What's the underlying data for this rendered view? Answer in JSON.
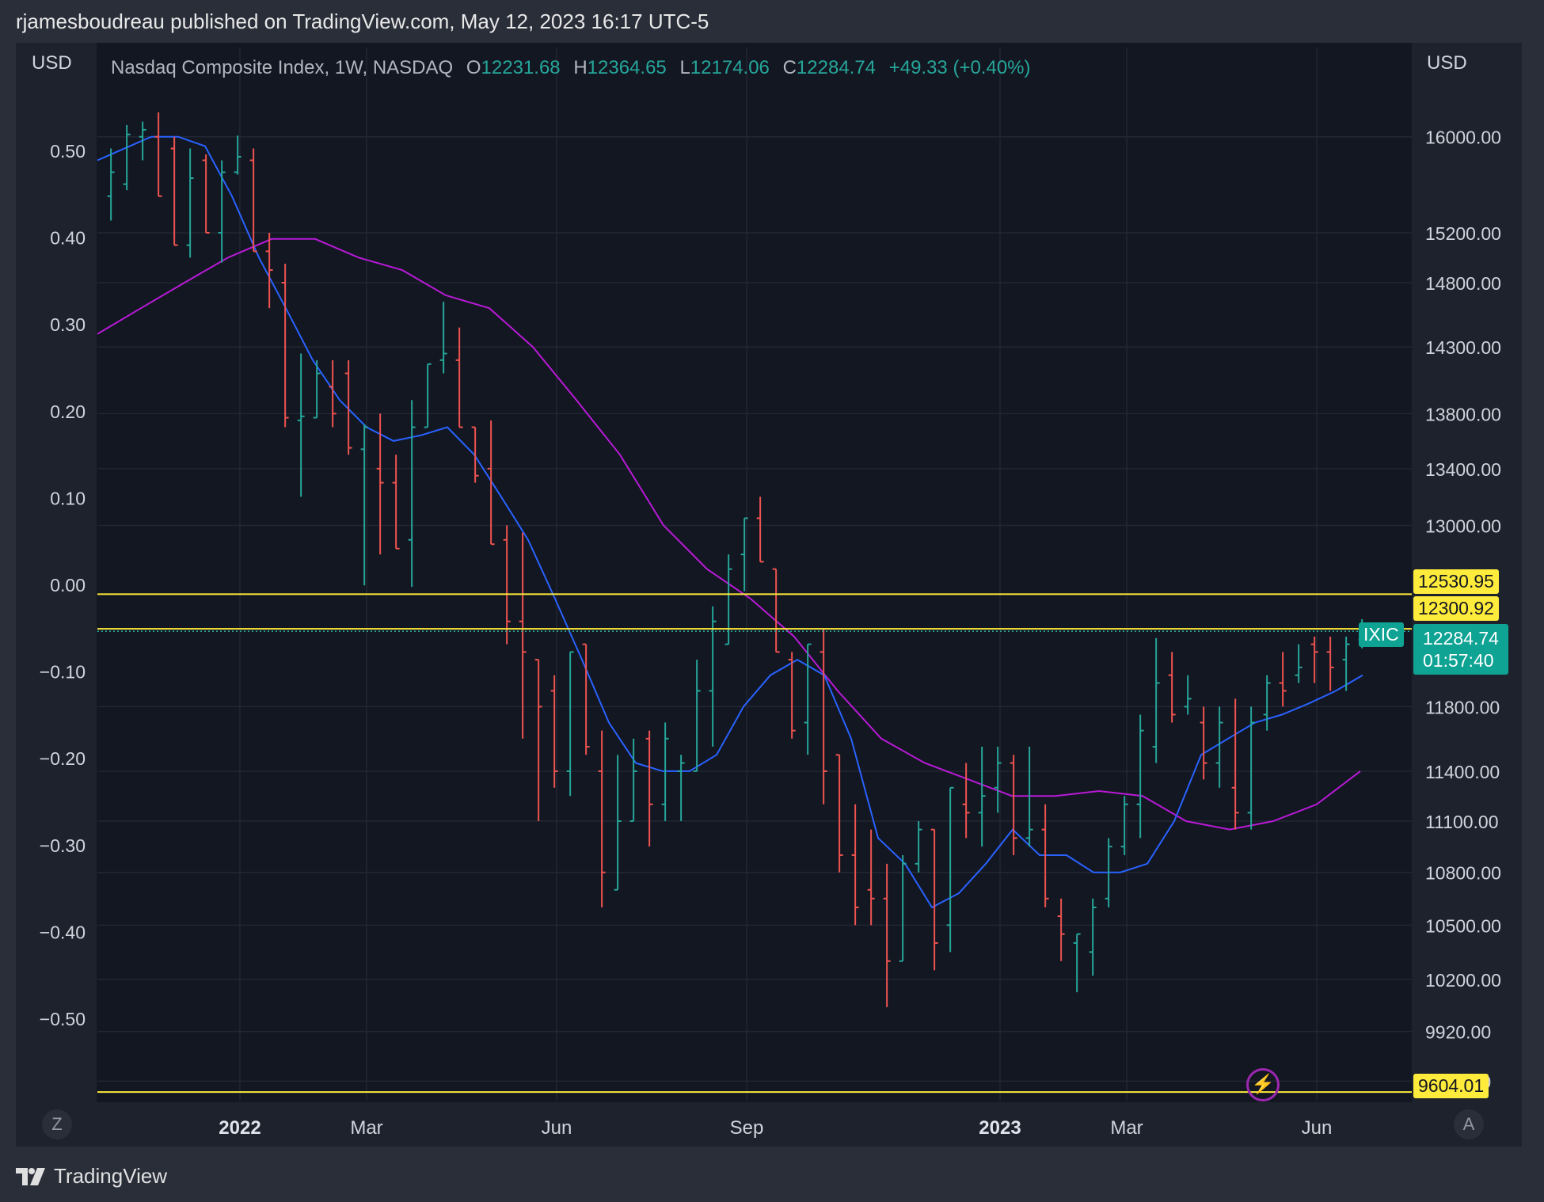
{
  "header": {
    "publisher_line": "rjamesboudreau published on TradingView.com, May 12, 2023 16:17 UTC-5"
  },
  "legend": {
    "symbol": "Nasdaq Composite Index, 1W, NASDAQ",
    "o_label": "O",
    "o_value": "12231.68",
    "h_label": "H",
    "h_value": "12364.65",
    "l_label": "L",
    "l_value": "12174.06",
    "c_label": "C",
    "c_value": "12284.74",
    "change": "+49.33 (+0.40%)"
  },
  "axes": {
    "left_unit": "USD",
    "right_unit": "USD"
  },
  "price_tags": {
    "line1": "12530.95",
    "line2": "12300.92",
    "symbol": "IXIC",
    "last_price": "12284.74",
    "countdown": "01:57:40",
    "low_line": "9604.01"
  },
  "buttons": {
    "left": "Z",
    "right": "A"
  },
  "footer": {
    "brand": "TradingView"
  },
  "colors": {
    "up": "#26a69a",
    "down": "#ef5350",
    "ma_fast": "#2962ff",
    "ma_slow": "#b81ad6",
    "hline": "#ffeb3b",
    "grid": "#232733"
  },
  "chart_data": {
    "type": "ohlc",
    "title": "Nasdaq Composite Index, 1W, NASDAQ",
    "y_scale": "log",
    "ylim": [
      9560,
      16500
    ],
    "x_range_weeks": [
      -9,
      74
    ],
    "left_axis_ticks": [
      "0.50",
      "0.40",
      "0.30",
      "0.20",
      "0.10",
      "0.00",
      "−0.10",
      "−0.20",
      "−0.30",
      "−0.40",
      "−0.50"
    ],
    "right_axis_ticks": [
      "16000.00",
      "15200.00",
      "14800.00",
      "14300.00",
      "13800.00",
      "13400.00",
      "13000.00",
      "11800.00",
      "11400.00",
      "11100.00",
      "10800.00",
      "10500.00",
      "10200.00",
      "9920.00",
      "9660.00"
    ],
    "x_ticks": [
      {
        "label": "2022",
        "week": 0,
        "bold": true
      },
      {
        "label": "Mar",
        "week": 8,
        "bold": false
      },
      {
        "label": "Jun",
        "week": 20,
        "bold": false
      },
      {
        "label": "Sep",
        "week": 32,
        "bold": false
      },
      {
        "label": "2023",
        "week": 48,
        "bold": true
      },
      {
        "label": "Mar",
        "week": 56,
        "bold": false
      },
      {
        "label": "Jun",
        "week": 68,
        "bold": false
      }
    ],
    "horizontal_lines": [
      12530.95,
      12300.92,
      9604.01
    ],
    "last_price": 12284.74,
    "bars": [
      {
        "t": "2021-11-05",
        "o": 15500,
        "h": 15900,
        "l": 15300,
        "c": 15700
      },
      {
        "t": "2021-11-12",
        "o": 15600,
        "h": 16100,
        "l": 15550,
        "c": 16020
      },
      {
        "t": "2021-11-19",
        "o": 16000,
        "h": 16130,
        "l": 15800,
        "c": 16060
      },
      {
        "t": "2021-11-26",
        "o": 16000,
        "h": 16210,
        "l": 15690,
        "c": 15500
      },
      {
        "t": "2021-12-03",
        "o": 15900,
        "h": 16000,
        "l": 15100,
        "c": 15100
      },
      {
        "t": "2021-12-10",
        "o": 15100,
        "h": 15900,
        "l": 15000,
        "c": 15650
      },
      {
        "t": "2021-12-17",
        "o": 15800,
        "h": 15850,
        "l": 15200,
        "c": 15200
      },
      {
        "t": "2021-12-24",
        "o": 15200,
        "h": 15800,
        "l": 14960,
        "c": 15700
      },
      {
        "t": "2021-12-31",
        "o": 15700,
        "h": 16010,
        "l": 15680,
        "c": 15830
      },
      {
        "t": "2022-01-07",
        "o": 15800,
        "h": 15900,
        "l": 15100,
        "c": 15050
      },
      {
        "t": "2022-01-14",
        "o": 15050,
        "h": 15200,
        "l": 14600,
        "c": 14900
      },
      {
        "t": "2022-01-21",
        "o": 14800,
        "h": 14950,
        "l": 13700,
        "c": 13770
      },
      {
        "t": "2022-01-28",
        "o": 13750,
        "h": 14250,
        "l": 13200,
        "c": 13780
      },
      {
        "t": "2022-02-04",
        "o": 13770,
        "h": 14200,
        "l": 13800,
        "c": 14100
      },
      {
        "t": "2022-02-11",
        "o": 14000,
        "h": 14200,
        "l": 13700,
        "c": 13800
      },
      {
        "t": "2022-02-18",
        "o": 14100,
        "h": 14200,
        "l": 13500,
        "c": 13550
      },
      {
        "t": "2022-02-25",
        "o": 13540,
        "h": 13720,
        "l": 12590,
        "c": 13700
      },
      {
        "t": "2022-03-04",
        "o": 13400,
        "h": 13800,
        "l": 12800,
        "c": 13300
      },
      {
        "t": "2022-03-11",
        "o": 13300,
        "h": 13500,
        "l": 12960,
        "c": 12840
      },
      {
        "t": "2022-03-18",
        "o": 12900,
        "h": 13900,
        "l": 12580,
        "c": 13700
      },
      {
        "t": "2022-03-25",
        "o": 13700,
        "h": 14150,
        "l": 13700,
        "c": 14170
      },
      {
        "t": "2022-04-01",
        "o": 14200,
        "h": 14650,
        "l": 14100,
        "c": 14250
      },
      {
        "t": "2022-04-08",
        "o": 14200,
        "h": 14450,
        "l": 13750,
        "c": 13700
      },
      {
        "t": "2022-04-15",
        "o": 13700,
        "h": 13700,
        "l": 13300,
        "c": 13350
      },
      {
        "t": "2022-04-22",
        "o": 13400,
        "h": 13750,
        "l": 12870,
        "c": 12870
      },
      {
        "t": "2022-04-29",
        "o": 12900,
        "h": 13000,
        "l": 12200,
        "c": 12350
      },
      {
        "t": "2022-05-06",
        "o": 12350,
        "h": 12950,
        "l": 11600,
        "c": 12150
      },
      {
        "t": "2022-05-13",
        "o": 12100,
        "h": 12000,
        "l": 11100,
        "c": 11800
      },
      {
        "t": "2022-05-20",
        "o": 11900,
        "h": 12000,
        "l": 11300,
        "c": 11400
      },
      {
        "t": "2022-05-27",
        "o": 11400,
        "h": 12150,
        "l": 11250,
        "c": 12150
      },
      {
        "t": "2022-06-03",
        "o": 12200,
        "h": 12200,
        "l": 11500,
        "c": 11550
      },
      {
        "t": "2022-06-10",
        "o": 11400,
        "h": 11650,
        "l": 10600,
        "c": 10800
      },
      {
        "t": "2022-06-17",
        "o": 10700,
        "h": 11500,
        "l": 10900,
        "c": 11100
      },
      {
        "t": "2022-06-24",
        "o": 11100,
        "h": 11600,
        "l": 11100,
        "c": 11400
      },
      {
        "t": "2022-07-01",
        "o": 11600,
        "h": 11650,
        "l": 10950,
        "c": 11200
      },
      {
        "t": "2022-07-08",
        "o": 11200,
        "h": 11700,
        "l": 11100,
        "c": 11600
      },
      {
        "t": "2022-07-15",
        "o": 11400,
        "h": 11500,
        "l": 11100,
        "c": 11450
      },
      {
        "t": "2022-07-22",
        "o": 11400,
        "h": 12100,
        "l": 11400,
        "c": 11900
      },
      {
        "t": "2022-07-29",
        "o": 11900,
        "h": 12450,
        "l": 11550,
        "c": 12350
      },
      {
        "t": "2022-08-05",
        "o": 12200,
        "h": 12800,
        "l": 12300,
        "c": 12700
      },
      {
        "t": "2022-08-12",
        "o": 12800,
        "h": 13050,
        "l": 12550,
        "c": 13050
      },
      {
        "t": "2022-08-19",
        "o": 13050,
        "h": 13200,
        "l": 12750,
        "c": 12750
      },
      {
        "t": "2022-08-26",
        "o": 12700,
        "h": 12700,
        "l": 12200,
        "c": 12150
      },
      {
        "t": "2022-09-02",
        "o": 12100,
        "h": 12150,
        "l": 11600,
        "c": 11650
      },
      {
        "t": "2022-09-09",
        "o": 11700,
        "h": 12200,
        "l": 11500,
        "c": 12200
      },
      {
        "t": "2022-09-16",
        "o": 12150,
        "h": 12300,
        "l": 11200,
        "c": 11400
      },
      {
        "t": "2022-09-23",
        "o": 11500,
        "h": 11450,
        "l": 10800,
        "c": 10900
      },
      {
        "t": "2022-09-30",
        "o": 10900,
        "h": 11200,
        "l": 10500,
        "c": 10600
      },
      {
        "t": "2022-10-07",
        "o": 10700,
        "h": 11050,
        "l": 10500,
        "c": 10650
      },
      {
        "t": "2022-10-14",
        "o": 10650,
        "h": 10850,
        "l": 10050,
        "c": 10300
      },
      {
        "t": "2022-10-21",
        "o": 10300,
        "h": 10900,
        "l": 10350,
        "c": 10850
      },
      {
        "t": "2022-10-28",
        "o": 10850,
        "h": 11100,
        "l": 10800,
        "c": 11050
      },
      {
        "t": "2022-11-04",
        "o": 11050,
        "h": 11050,
        "l": 10250,
        "c": 10400
      },
      {
        "t": "2022-11-11",
        "o": 10500,
        "h": 11250,
        "l": 10350,
        "c": 11300
      },
      {
        "t": "2022-11-18",
        "o": 11200,
        "h": 11450,
        "l": 11000,
        "c": 11150
      },
      {
        "t": "2022-11-25",
        "o": 11150,
        "h": 11550,
        "l": 10950,
        "c": 11250
      },
      {
        "t": "2022-12-02",
        "o": 11300,
        "h": 11550,
        "l": 11150,
        "c": 11450
      },
      {
        "t": "2022-12-09",
        "o": 11450,
        "h": 11500,
        "l": 10900,
        "c": 11000
      },
      {
        "t": "2022-12-16",
        "o": 11000,
        "h": 11550,
        "l": 10950,
        "c": 11050
      },
      {
        "t": "2022-12-23",
        "o": 11050,
        "h": 11200,
        "l": 10600,
        "c": 10650
      },
      {
        "t": "2022-12-30",
        "o": 10550,
        "h": 10650,
        "l": 10300,
        "c": 10450
      },
      {
        "t": "2023-01-06",
        "o": 10400,
        "h": 10450,
        "l": 10130,
        "c": 10450
      },
      {
        "t": "2023-01-13",
        "o": 10350,
        "h": 10650,
        "l": 10220,
        "c": 10600
      },
      {
        "t": "2023-01-20",
        "o": 10650,
        "h": 11000,
        "l": 10600,
        "c": 10950
      },
      {
        "t": "2023-01-27",
        "o": 10950,
        "h": 11250,
        "l": 10900,
        "c": 11200
      },
      {
        "t": "2023-02-03",
        "o": 11200,
        "h": 11750,
        "l": 11000,
        "c": 11650
      },
      {
        "t": "2023-02-10",
        "o": 11550,
        "h": 12240,
        "l": 11450,
        "c": 11950
      },
      {
        "t": "2023-02-17",
        "o": 12000,
        "h": 12150,
        "l": 11700,
        "c": 11750
      },
      {
        "t": "2023-02-24",
        "o": 11800,
        "h": 12000,
        "l": 11750,
        "c": 11850
      },
      {
        "t": "2023-03-03",
        "o": 11700,
        "h": 11800,
        "l": 11350,
        "c": 11450
      },
      {
        "t": "2023-03-10",
        "o": 11450,
        "h": 11800,
        "l": 11300,
        "c": 11700
      },
      {
        "t": "2023-03-17",
        "o": 11300,
        "h": 11850,
        "l": 11050,
        "c": 11150
      },
      {
        "t": "2023-03-24",
        "o": 11150,
        "h": 11800,
        "l": 11050,
        "c": 11700
      },
      {
        "t": "2023-03-31",
        "o": 11750,
        "h": 12000,
        "l": 11650,
        "c": 11950
      },
      {
        "t": "2023-04-07",
        "o": 11950,
        "h": 12150,
        "l": 11800,
        "c": 11900
      },
      {
        "t": "2023-04-14",
        "o": 12000,
        "h": 12200,
        "l": 11950,
        "c": 12050
      },
      {
        "t": "2023-04-21",
        "o": 12200,
        "h": 12250,
        "l": 11950,
        "c": 12150
      },
      {
        "t": "2023-04-28",
        "o": 12150,
        "h": 12250,
        "l": 11900,
        "c": 12050
      },
      {
        "t": "2023-05-05",
        "o": 12100,
        "h": 12250,
        "l": 11900,
        "c": 12200
      },
      {
        "t": "2023-05-12",
        "o": 12231.68,
        "h": 12364.65,
        "l": 12174.06,
        "c": 12284.74
      }
    ],
    "ma_fast": [
      15800,
      15900,
      16000,
      16000,
      15920,
      15500,
      15000,
      14600,
      14200,
      13900,
      13700,
      13600,
      13640,
      13700,
      13500,
      13200,
      12900,
      12500,
      12100,
      11700,
      11450,
      11400,
      11400,
      11500,
      11800,
      12000,
      12100,
      12000,
      11600,
      11000,
      10850,
      10600,
      10680,
      10850,
      11050,
      10900,
      10900,
      10800,
      10800,
      10850,
      11100,
      11500,
      11600,
      11700,
      11750,
      11820,
      11900,
      12000
    ],
    "ma_slow": [
      14400,
      14600,
      14800,
      15000,
      15150,
      15150,
      15000,
      14900,
      14700,
      14600,
      14300,
      13900,
      13500,
      13000,
      12700,
      12500,
      12250,
      11900,
      11600,
      11450,
      11350,
      11250,
      11250,
      11280,
      11250,
      11100,
      11050,
      11100,
      11200,
      11400
    ]
  }
}
